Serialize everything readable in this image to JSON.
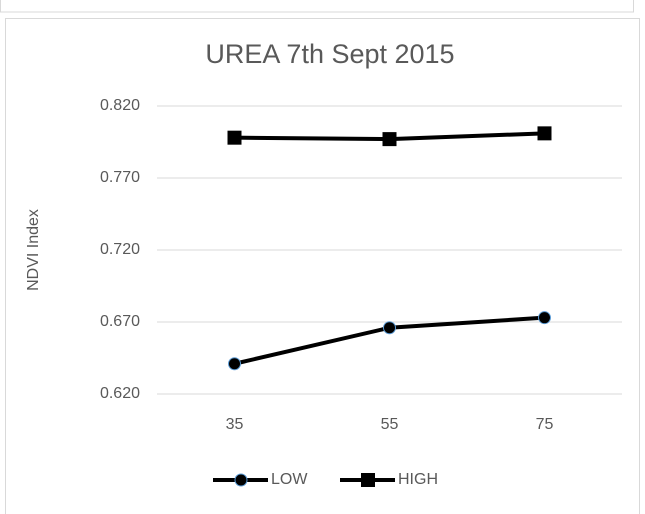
{
  "chart_data": {
    "type": "line",
    "title": "UREA 7th Sept 2015",
    "y_label": "NDVI Index",
    "categories": [
      "35",
      "55",
      "75"
    ],
    "series": [
      {
        "name": "LOW",
        "color": "#000000",
        "marker": "circle",
        "values": [
          0.641,
          0.666,
          0.673
        ]
      },
      {
        "name": "HIGH",
        "color": "#000000",
        "marker": "square",
        "values": [
          0.798,
          0.797,
          0.801
        ]
      }
    ],
    "ylim": [
      0.62,
      0.82
    ],
    "yticks": [
      {
        "value": 0.62,
        "label": "0.620"
      },
      {
        "value": 0.67,
        "label": "0.670"
      },
      {
        "value": 0.72,
        "label": "0.720"
      },
      {
        "value": 0.77,
        "label": "0.770"
      },
      {
        "value": 0.82,
        "label": "0.820"
      }
    ],
    "grid": true,
    "legend": "bottom"
  }
}
